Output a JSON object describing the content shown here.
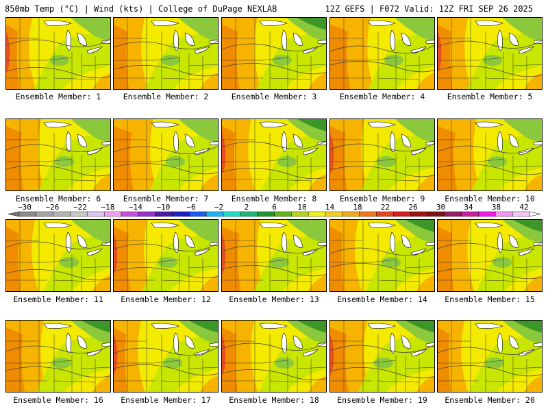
{
  "header": {
    "left": "850mb Temp (°C) | Wind (kts) | College of DuPage NEXLAB",
    "right": "12Z GEFS | F072 Valid: 12Z FRI SEP 26 2025"
  },
  "panels": [
    {
      "label": "Ensemble Member: 1"
    },
    {
      "label": "Ensemble Member: 2"
    },
    {
      "label": "Ensemble Member: 3"
    },
    {
      "label": "Ensemble Member: 4"
    },
    {
      "label": "Ensemble Member: 5"
    },
    {
      "label": "Ensemble Member: 6"
    },
    {
      "label": "Ensemble Member: 7"
    },
    {
      "label": "Ensemble Member: 8"
    },
    {
      "label": "Ensemble Member: 9"
    },
    {
      "label": "Ensemble Member: 10"
    },
    {
      "label": "Ensemble Member: 11"
    },
    {
      "label": "Ensemble Member: 12"
    },
    {
      "label": "Ensemble Member: 13"
    },
    {
      "label": "Ensemble Member: 14"
    },
    {
      "label": "Ensemble Member: 15"
    },
    {
      "label": "Ensemble Member: 16"
    },
    {
      "label": "Ensemble Member: 17"
    },
    {
      "label": "Ensemble Member: 18"
    },
    {
      "label": "Ensemble Member: 19"
    },
    {
      "label": "Ensemble Member: 20"
    }
  ],
  "colorbar": {
    "ticks": [
      "−30",
      "−26",
      "−22",
      "−18",
      "−14",
      "−10",
      "−6",
      "−2",
      "2",
      "6",
      "10",
      "14",
      "18",
      "22",
      "26",
      "30",
      "34",
      "38",
      "42"
    ],
    "colors": [
      "#8c8c8c",
      "#a5a5a5",
      "#b4b4b4",
      "#c8c8c8",
      "#dcc8f0",
      "#f0a0f0",
      "#c850dc",
      "#9632c8",
      "#4b19a0",
      "#1e1ec8",
      "#1e5af0",
      "#1eb4f0",
      "#1edcc8",
      "#1eb478",
      "#1e9632",
      "#64b41e",
      "#b4d21e",
      "#f0f01e",
      "#f0d21e",
      "#f0aa1e",
      "#f0781e",
      "#e6461e",
      "#d21e1e",
      "#a01414",
      "#781414",
      "#961e64",
      "#c81ea0",
      "#f01ee6",
      "#f096f0",
      "#f0c8f0"
    ]
  },
  "palette": {
    "yellow": "#f3ea00",
    "lightgreen": "#c8e600",
    "green": "#8cc83c",
    "darkgreen": "#3c9628",
    "orange": "#f6b400",
    "darkorange": "#f08c00",
    "red": "#e6501e"
  }
}
